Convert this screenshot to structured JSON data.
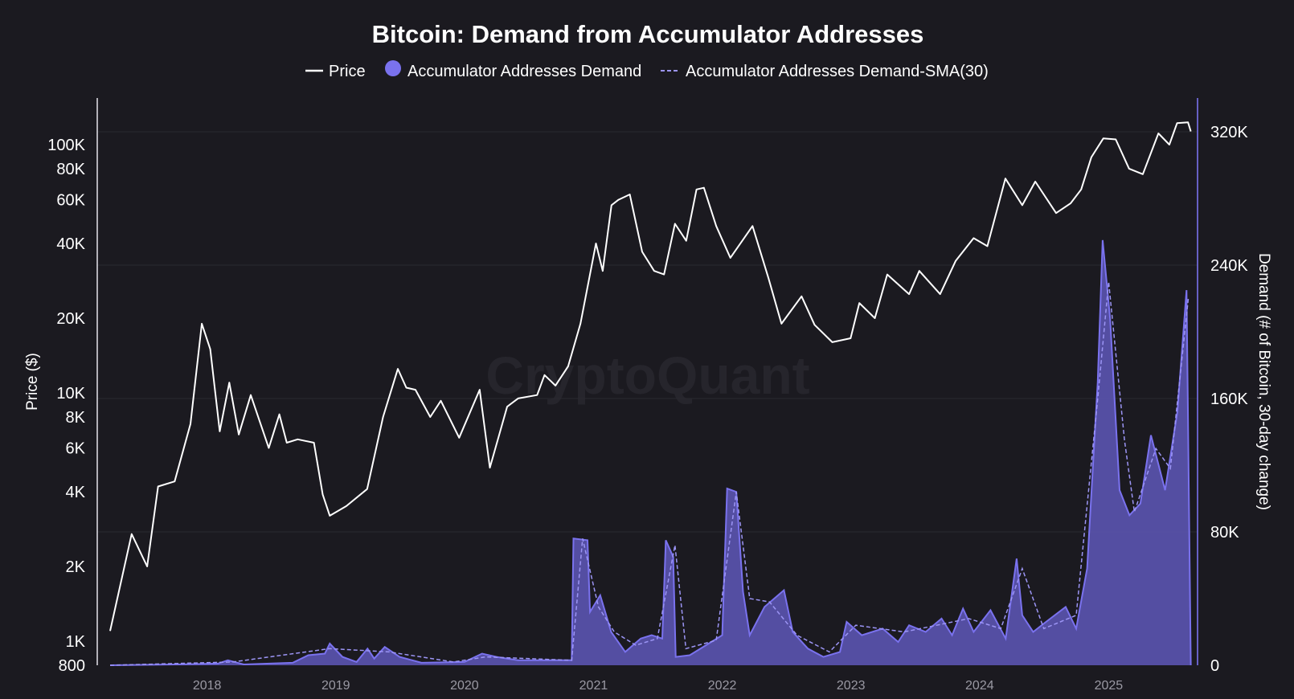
{
  "chart_data": {
    "type": "line",
    "title": "Bitcoin: Demand from Accumulator Addresses",
    "watermark": "CryptoQuant",
    "legend_placement": "top-center",
    "grid": true,
    "colors": {
      "background": "#1b1a20",
      "price": "#ffffff",
      "demand": "#7a72ee",
      "demand_fill": "#5b54b0",
      "sma": "#9c95f5",
      "grid": "#2a2930",
      "axis": "#d8d7de",
      "right_axis": "#7a72ee"
    },
    "legend": [
      {
        "label": "Price",
        "marker": "line"
      },
      {
        "label": "Accumulator Addresses Demand",
        "marker": "dot"
      },
      {
        "label": "Accumulator Addresses Demand-SMA(30)",
        "marker": "dashed-line"
      }
    ],
    "y_left": {
      "label": "Price ($)",
      "scale": "log",
      "range": [
        800,
        150000
      ],
      "ticks": [
        {
          "label": "100K",
          "value": 100000
        },
        {
          "label": "80K",
          "value": 80000
        },
        {
          "label": "60K",
          "value": 60000
        },
        {
          "label": "40K",
          "value": 40000
        },
        {
          "label": "20K",
          "value": 20000
        },
        {
          "label": "10K",
          "value": 10000
        },
        {
          "label": "8K",
          "value": 8000
        },
        {
          "label": "6K",
          "value": 6000
        },
        {
          "label": "4K",
          "value": 4000
        },
        {
          "label": "2K",
          "value": 2000
        },
        {
          "label": "1K",
          "value": 1000
        },
        {
          "label": "800",
          "value": 800
        }
      ]
    },
    "y_right": {
      "label": "Demand (# of Bitcoin, 30-day change)",
      "scale": "linear",
      "range": [
        0,
        320000
      ],
      "ticks": [
        {
          "label": "320K",
          "value": 320000
        },
        {
          "label": "240K",
          "value": 240000
        },
        {
          "label": "160K",
          "value": 160000
        },
        {
          "label": "80K",
          "value": 80000
        },
        {
          "label": "0",
          "value": 0
        }
      ]
    },
    "x": {
      "range": [
        "2017-04-01",
        "2025-09-01"
      ],
      "ticks": [
        {
          "label": "2018",
          "value": "2018-01-01"
        },
        {
          "label": "2019",
          "value": "2019-01-01"
        },
        {
          "label": "2020",
          "value": "2020-01-01"
        },
        {
          "label": "2021",
          "value": "2021-01-01"
        },
        {
          "label": "2022",
          "value": "2022-01-01"
        },
        {
          "label": "2023",
          "value": "2023-01-01"
        },
        {
          "label": "2024",
          "value": "2024-01-01"
        },
        {
          "label": "2025",
          "value": "2025-01-01"
        }
      ]
    },
    "series": [
      {
        "name": "Price",
        "axis": "left",
        "style": "line",
        "points": [
          [
            "2017-04-01",
            1100
          ],
          [
            "2017-06-01",
            2700
          ],
          [
            "2017-07-15",
            2000
          ],
          [
            "2017-08-15",
            4200
          ],
          [
            "2017-10-01",
            4400
          ],
          [
            "2017-11-15",
            7500
          ],
          [
            "2017-12-17",
            19000
          ],
          [
            "2018-01-10",
            15000
          ],
          [
            "2018-02-06",
            7000
          ],
          [
            "2018-03-05",
            11000
          ],
          [
            "2018-04-01",
            6800
          ],
          [
            "2018-05-05",
            9800
          ],
          [
            "2018-06-25",
            6000
          ],
          [
            "2018-07-25",
            8200
          ],
          [
            "2018-08-15",
            6300
          ],
          [
            "2018-09-15",
            6500
          ],
          [
            "2018-10-31",
            6300
          ],
          [
            "2018-11-25",
            3900
          ],
          [
            "2018-12-15",
            3200
          ],
          [
            "2019-01-31",
            3500
          ],
          [
            "2019-03-31",
            4100
          ],
          [
            "2019-05-15",
            8000
          ],
          [
            "2019-06-26",
            12500
          ],
          [
            "2019-07-20",
            10500
          ],
          [
            "2019-08-15",
            10300
          ],
          [
            "2019-09-26",
            8000
          ],
          [
            "2019-10-26",
            9300
          ],
          [
            "2019-12-17",
            6600
          ],
          [
            "2020-02-13",
            10300
          ],
          [
            "2020-03-13",
            5000
          ],
          [
            "2020-05-01",
            8800
          ],
          [
            "2020-06-01",
            9500
          ],
          [
            "2020-07-25",
            9800
          ],
          [
            "2020-08-15",
            11800
          ],
          [
            "2020-09-15",
            10700
          ],
          [
            "2020-10-21",
            12800
          ],
          [
            "2020-11-25",
            19000
          ],
          [
            "2021-01-08",
            40000
          ],
          [
            "2021-01-27",
            31000
          ],
          [
            "2021-02-21",
            57000
          ],
          [
            "2021-03-13",
            60000
          ],
          [
            "2021-04-14",
            63000
          ],
          [
            "2021-05-19",
            37000
          ],
          [
            "2021-06-22",
            31000
          ],
          [
            "2021-07-20",
            30000
          ],
          [
            "2021-08-20",
            48000
          ],
          [
            "2021-09-21",
            41000
          ],
          [
            "2021-10-20",
            66000
          ],
          [
            "2021-11-10",
            67000
          ],
          [
            "2021-12-15",
            47000
          ],
          [
            "2022-01-24",
            35000
          ],
          [
            "2022-03-28",
            47000
          ],
          [
            "2022-05-12",
            29000
          ],
          [
            "2022-06-18",
            19000
          ],
          [
            "2022-08-14",
            24500
          ],
          [
            "2022-09-20",
            18800
          ],
          [
            "2022-11-09",
            16000
          ],
          [
            "2022-12-31",
            16600
          ],
          [
            "2023-01-25",
            23000
          ],
          [
            "2023-03-10",
            20000
          ],
          [
            "2023-04-14",
            30000
          ],
          [
            "2023-06-15",
            25000
          ],
          [
            "2023-07-14",
            31000
          ],
          [
            "2023-09-11",
            25000
          ],
          [
            "2023-10-25",
            34000
          ],
          [
            "2023-12-15",
            42000
          ],
          [
            "2024-01-23",
            39000
          ],
          [
            "2024-03-14",
            73000
          ],
          [
            "2024-05-01",
            57000
          ],
          [
            "2024-06-07",
            71000
          ],
          [
            "2024-08-05",
            53000
          ],
          [
            "2024-09-15",
            58000
          ],
          [
            "2024-10-15",
            66000
          ],
          [
            "2024-11-13",
            89000
          ],
          [
            "2024-12-17",
            106000
          ],
          [
            "2025-01-21",
            105000
          ],
          [
            "2025-02-28",
            80000
          ],
          [
            "2025-04-08",
            76000
          ],
          [
            "2025-05-22",
            111000
          ],
          [
            "2025-06-22",
            100000
          ],
          [
            "2025-07-14",
            122000
          ],
          [
            "2025-08-14",
            123000
          ],
          [
            "2025-08-22",
            113000
          ]
        ]
      },
      {
        "name": "Accumulator Addresses Demand",
        "axis": "right",
        "style": "area",
        "points": [
          [
            "2017-04-01",
            0
          ],
          [
            "2017-10-01",
            500
          ],
          [
            "2018-02-01",
            1000
          ],
          [
            "2018-03-01",
            3000
          ],
          [
            "2018-04-15",
            500
          ],
          [
            "2018-09-01",
            1500
          ],
          [
            "2018-10-15",
            6000
          ],
          [
            "2018-12-01",
            7000
          ],
          [
            "2018-12-15",
            13000
          ],
          [
            "2019-01-20",
            5000
          ],
          [
            "2019-03-01",
            2000
          ],
          [
            "2019-04-01",
            10000
          ],
          [
            "2019-04-20",
            4000
          ],
          [
            "2019-05-20",
            11000
          ],
          [
            "2019-07-01",
            5000
          ],
          [
            "2019-09-01",
            1500
          ],
          [
            "2020-01-01",
            2000
          ],
          [
            "2020-02-20",
            7000
          ],
          [
            "2020-04-01",
            5000
          ],
          [
            "2020-06-01",
            3000
          ],
          [
            "2020-08-01",
            3000
          ],
          [
            "2020-10-31",
            3000
          ],
          [
            "2020-11-05",
            76000
          ],
          [
            "2020-12-15",
            75000
          ],
          [
            "2020-12-22",
            32000
          ],
          [
            "2021-01-20",
            42000
          ],
          [
            "2021-02-20",
            20000
          ],
          [
            "2021-04-01",
            8000
          ],
          [
            "2021-05-15",
            16000
          ],
          [
            "2021-06-15",
            18000
          ],
          [
            "2021-07-15",
            16000
          ],
          [
            "2021-07-25",
            75000
          ],
          [
            "2021-08-15",
            65000
          ],
          [
            "2021-08-22",
            5000
          ],
          [
            "2021-10-01",
            6000
          ],
          [
            "2021-12-01",
            14000
          ],
          [
            "2022-01-01",
            18000
          ],
          [
            "2022-01-15",
            106000
          ],
          [
            "2022-02-10",
            104000
          ],
          [
            "2022-03-01",
            44000
          ],
          [
            "2022-03-20",
            18000
          ],
          [
            "2022-05-01",
            35000
          ],
          [
            "2022-06-25",
            45000
          ],
          [
            "2022-07-20",
            20000
          ],
          [
            "2022-09-01",
            10000
          ],
          [
            "2022-10-15",
            5000
          ],
          [
            "2022-12-01",
            8000
          ],
          [
            "2022-12-20",
            26000
          ],
          [
            "2023-02-01",
            18000
          ],
          [
            "2023-04-01",
            22000
          ],
          [
            "2023-05-15",
            14000
          ],
          [
            "2023-06-15",
            24000
          ],
          [
            "2023-08-01",
            20000
          ],
          [
            "2023-09-15",
            28000
          ],
          [
            "2023-10-15",
            18000
          ],
          [
            "2023-11-15",
            34000
          ],
          [
            "2023-12-15",
            20000
          ],
          [
            "2024-02-01",
            33000
          ],
          [
            "2024-03-15",
            16000
          ],
          [
            "2024-04-15",
            64000
          ],
          [
            "2024-05-01",
            30000
          ],
          [
            "2024-06-01",
            20000
          ],
          [
            "2024-07-01",
            25000
          ],
          [
            "2024-09-01",
            35000
          ],
          [
            "2024-10-01",
            22000
          ],
          [
            "2024-11-01",
            58000
          ],
          [
            "2024-12-01",
            170000
          ],
          [
            "2024-12-15",
            255000
          ],
          [
            "2025-01-05",
            208000
          ],
          [
            "2025-02-01",
            105000
          ],
          [
            "2025-03-01",
            90000
          ],
          [
            "2025-04-01",
            97000
          ],
          [
            "2025-05-01",
            138000
          ],
          [
            "2025-06-10",
            105000
          ],
          [
            "2025-07-15",
            152000
          ],
          [
            "2025-08-10",
            225000
          ],
          [
            "2025-08-22",
            0
          ]
        ]
      },
      {
        "name": "Accumulator Addresses Demand-SMA(30)",
        "axis": "right",
        "style": "dashed",
        "points": [
          [
            "2017-04-01",
            0
          ],
          [
            "2018-03-15",
            2000
          ],
          [
            "2018-12-15",
            10000
          ],
          [
            "2019-06-01",
            8000
          ],
          [
            "2019-12-01",
            2000
          ],
          [
            "2020-03-01",
            5000
          ],
          [
            "2020-10-31",
            3000
          ],
          [
            "2020-12-01",
            76000
          ],
          [
            "2021-01-15",
            35000
          ],
          [
            "2021-03-01",
            20000
          ],
          [
            "2021-05-01",
            12000
          ],
          [
            "2021-07-01",
            16000
          ],
          [
            "2021-08-20",
            72000
          ],
          [
            "2021-09-20",
            10000
          ],
          [
            "2021-12-15",
            15000
          ],
          [
            "2022-02-10",
            104000
          ],
          [
            "2022-03-20",
            40000
          ],
          [
            "2022-05-15",
            38000
          ],
          [
            "2022-08-01",
            18000
          ],
          [
            "2022-11-01",
            8000
          ],
          [
            "2023-01-15",
            24000
          ],
          [
            "2023-06-01",
            20000
          ],
          [
            "2023-09-01",
            24000
          ],
          [
            "2023-12-01",
            28000
          ],
          [
            "2024-03-01",
            22000
          ],
          [
            "2024-05-01",
            58000
          ],
          [
            "2024-07-01",
            22000
          ],
          [
            "2024-10-01",
            30000
          ],
          [
            "2024-12-01",
            160000
          ],
          [
            "2025-01-01",
            230000
          ],
          [
            "2025-02-15",
            135000
          ],
          [
            "2025-03-15",
            92000
          ],
          [
            "2025-05-15",
            130000
          ],
          [
            "2025-06-25",
            118000
          ],
          [
            "2025-08-15",
            220000
          ]
        ]
      }
    ]
  }
}
